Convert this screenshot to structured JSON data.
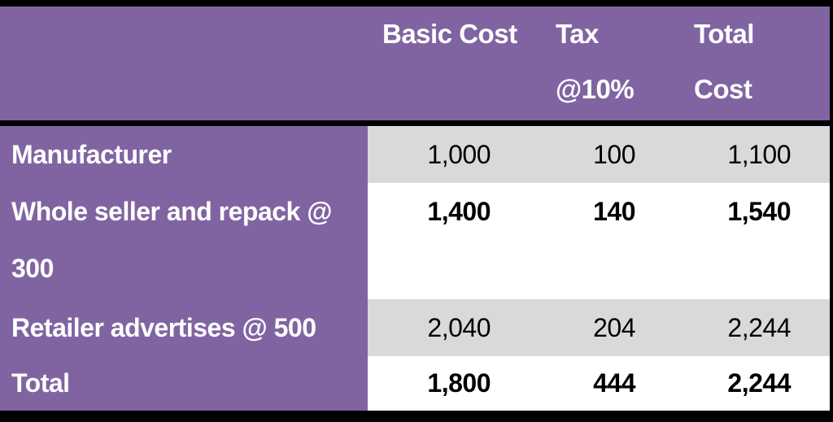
{
  "table": {
    "header": [
      {
        "lines": [
          "Basic Cost"
        ]
      },
      {
        "lines": [
          "Tax",
          "@10%"
        ]
      },
      {
        "lines": [
          "Total",
          "Cost"
        ]
      }
    ],
    "rows": [
      [
        "Manufacturer",
        "1,000",
        "100",
        "1,100"
      ],
      [
        "Whole seller and repack @ 300",
        "1,400",
        "140",
        "1,540"
      ],
      [
        "Retailer advertises @ 500",
        "2,040",
        "204",
        "2,244"
      ],
      [
        "Total",
        "1,800",
        "444",
        "2,244"
      ]
    ]
  }
}
